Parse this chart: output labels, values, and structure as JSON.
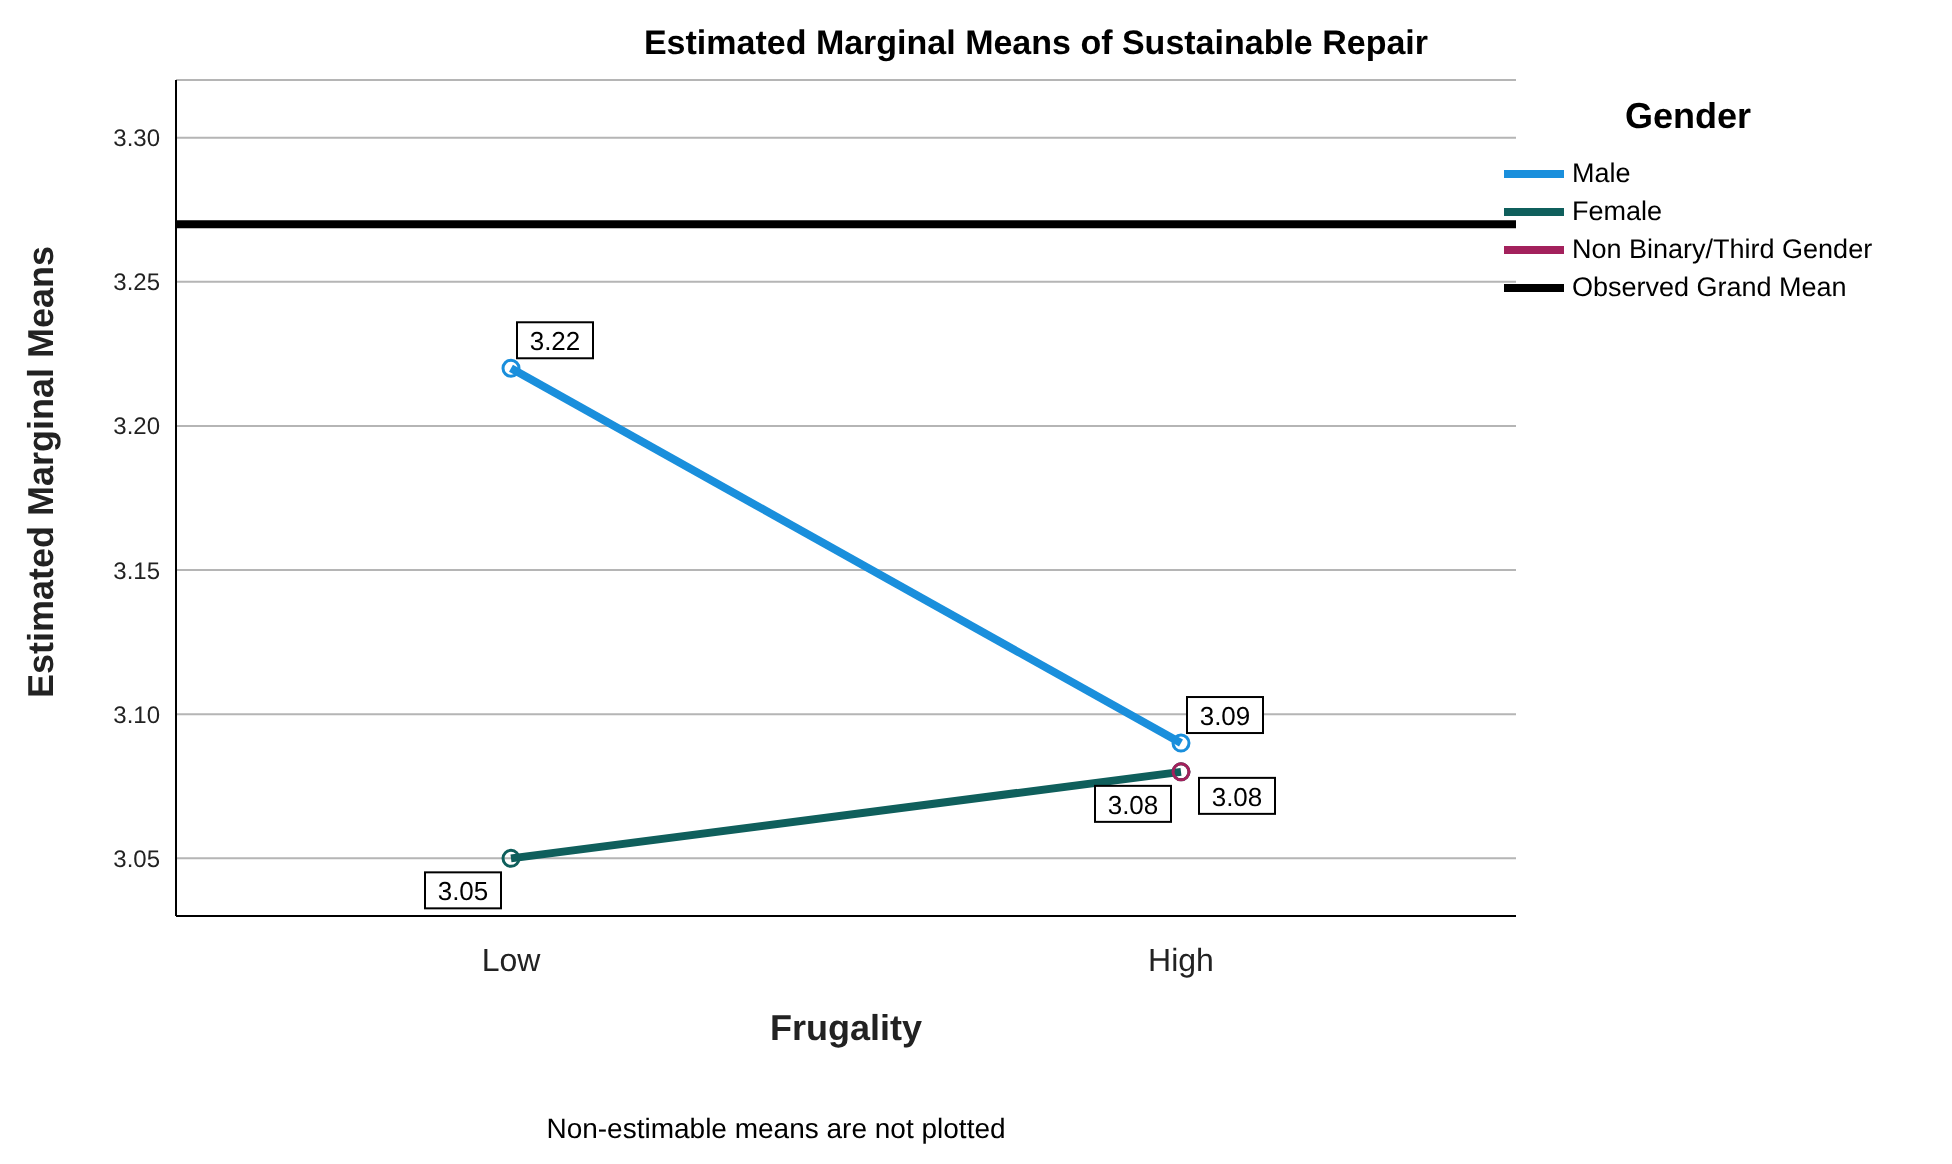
{
  "chart_data": {
    "type": "line",
    "title": "Estimated Marginal Means of Sustainable Repair",
    "xlabel": "Frugality",
    "ylabel": "Estimated Marginal Means",
    "legend_title": "Gender",
    "categories": [
      "Low",
      "High"
    ],
    "series": [
      {
        "name": "Male",
        "color": "#1a8fdc",
        "values": [
          3.22,
          3.09
        ]
      },
      {
        "name": "Female",
        "color": "#0f5f5c",
        "values": [
          3.05,
          3.08
        ]
      },
      {
        "name": "Non Binary/Third Gender",
        "color": "#a3215c",
        "values": [
          null,
          3.08
        ]
      }
    ],
    "ref_lines": [
      {
        "axis": "y",
        "value": 3.27,
        "label": "Observed Grand Mean",
        "color": "#000000"
      }
    ],
    "ylim": [
      3.03,
      3.32
    ],
    "yticks": [
      {
        "value": 3.05,
        "label": "3.05"
      },
      {
        "value": 3.1,
        "label": "3.10"
      },
      {
        "value": 3.15,
        "label": "3.15"
      },
      {
        "value": 3.2,
        "label": "3.20"
      },
      {
        "value": 3.25,
        "label": "3.25"
      },
      {
        "value": 3.3,
        "label": "3.30"
      }
    ],
    "grid": "y",
    "legend": "top right",
    "marker": "circle",
    "line_style": "solid",
    "data_labels": true,
    "annotations": [
      "Non-estimable means are not plotted"
    ]
  }
}
